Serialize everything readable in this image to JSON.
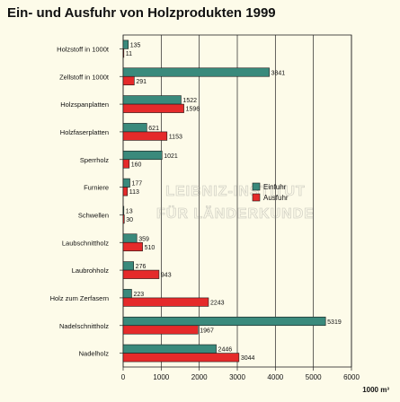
{
  "title": "Ein- und Ausfuhr von Holzprodukten 1999",
  "unit_label": "1000 m³",
  "watermark": [
    "LEIBNIZ-INSTITUT",
    "FÜR LÄNDERKUNDE"
  ],
  "chart_data": {
    "type": "bar",
    "orientation": "horizontal",
    "title": "Ein- und Ausfuhr von Holzprodukten 1999",
    "xlabel": "1000 m³",
    "xlim": [
      0,
      6000
    ],
    "xticks": [
      0,
      1000,
      2000,
      3000,
      4000,
      5000,
      6000
    ],
    "grid": true,
    "legend_position": "center-right",
    "categories": [
      "Holzstoff in 1000t",
      "Zellstoff in 1000t",
      "Holzspanplatten",
      "Holzfaserplatten",
      "Sperrholz",
      "Furniere",
      "Schwellen",
      "Laubschnittholz",
      "Laubrohholz",
      "Holz zum Zerfasern",
      "Nadelschnittholz",
      "Nadelholz"
    ],
    "series": [
      {
        "name": "Einfuhr",
        "color": "#3a8a7c",
        "values": [
          135,
          3841,
          1522,
          621,
          1021,
          177,
          13,
          359,
          276,
          223,
          5319,
          2446
        ]
      },
      {
        "name": "Ausfuhr",
        "color": "#e52a2a",
        "values": [
          11,
          291,
          1596,
          1153,
          160,
          113,
          30,
          510,
          943,
          2243,
          1967,
          3044
        ]
      }
    ]
  }
}
